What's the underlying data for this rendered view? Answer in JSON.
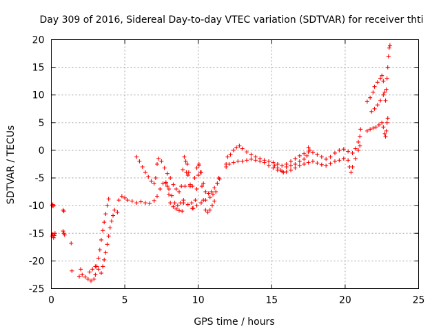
{
  "chart_data": {
    "type": "scatter",
    "title": "Day 309 of 2016, Sidereal Day-to-day VTEC variation (SDTVAR) for receiver thti",
    "xlabel": "GPS time / hours",
    "ylabel": "SDTVAR / TECUs",
    "xlim": [
      0,
      25
    ],
    "ylim": [
      -25,
      20
    ],
    "xticks": [
      0,
      5,
      10,
      15,
      20,
      25
    ],
    "yticks": [
      -25,
      -20,
      -15,
      -10,
      -5,
      0,
      5,
      10,
      15,
      20
    ],
    "grid": true,
    "marker": "+",
    "color": "#ff0000",
    "series": [
      {
        "points": [
          [
            0.05,
            -10
          ],
          [
            0.1,
            -9.8
          ],
          [
            0.12,
            -10.1
          ],
          [
            0.05,
            -15.5
          ],
          [
            0.1,
            -15.2
          ],
          [
            0.15,
            -15.8
          ],
          [
            0.2,
            -15.4
          ],
          [
            0.25,
            -15.0
          ],
          [
            0.8,
            -10.8
          ],
          [
            0.85,
            -11.0
          ],
          [
            0.8,
            -14.6
          ],
          [
            0.85,
            -15.0
          ],
          [
            0.9,
            -15.3
          ],
          [
            1.35,
            -16.8
          ],
          [
            1.4,
            -21.8
          ],
          [
            1.9,
            -22.8
          ],
          [
            2.0,
            -21.5
          ],
          [
            2.1,
            -22.5
          ],
          [
            2.3,
            -22.9
          ],
          [
            2.5,
            -23.3
          ],
          [
            2.7,
            -23.6
          ],
          [
            2.9,
            -23.3
          ],
          [
            3.0,
            -22.5
          ],
          [
            3.1,
            -21.0
          ],
          [
            3.2,
            -19.5
          ],
          [
            3.3,
            -18.0
          ],
          [
            3.4,
            -16.2
          ],
          [
            3.5,
            -14.5
          ],
          [
            3.6,
            -13.0
          ],
          [
            3.7,
            -11.5
          ],
          [
            3.8,
            -10.0
          ],
          [
            3.9,
            -8.8
          ],
          [
            2.6,
            -22.0
          ],
          [
            2.8,
            -21.5
          ],
          [
            3.0,
            -21.0
          ],
          [
            3.2,
            -21.5
          ],
          [
            3.4,
            -22.2
          ],
          [
            3.5,
            -21.0
          ],
          [
            3.6,
            -19.8
          ],
          [
            3.7,
            -18.5
          ],
          [
            3.8,
            -17.0
          ],
          [
            3.9,
            -15.5
          ],
          [
            4.0,
            -14.0
          ],
          [
            4.1,
            -12.8
          ],
          [
            4.2,
            -11.8
          ],
          [
            4.3,
            -10.8
          ],
          [
            4.5,
            -11.2
          ],
          [
            4.6,
            -9.0
          ],
          [
            4.8,
            -8.3
          ],
          [
            5.0,
            -8.6
          ],
          [
            5.2,
            -9.0
          ],
          [
            5.5,
            -9.2
          ],
          [
            5.8,
            -9.5
          ],
          [
            6.1,
            -9.3
          ],
          [
            6.4,
            -9.5
          ],
          [
            6.7,
            -9.6
          ],
          [
            7.0,
            -9.1
          ],
          [
            7.2,
            -8.3
          ],
          [
            7.4,
            -7.0
          ],
          [
            7.6,
            -6.0
          ],
          [
            7.8,
            -5.8
          ],
          [
            7.9,
            -6.5
          ],
          [
            8.0,
            -8.0
          ],
          [
            8.1,
            -9.5
          ],
          [
            8.3,
            -10.2
          ],
          [
            8.5,
            -10.6
          ],
          [
            8.7,
            -10.9
          ],
          [
            8.9,
            -11.0
          ],
          [
            9.0,
            -9.5
          ],
          [
            9.1,
            -6.5
          ],
          [
            9.2,
            -4.0
          ],
          [
            9.25,
            -2.5
          ],
          [
            9.35,
            -4.0
          ],
          [
            9.45,
            -6.5
          ],
          [
            9.55,
            -9.5
          ],
          [
            9.65,
            -10.5
          ],
          [
            9.8,
            -9.0
          ],
          [
            9.9,
            -7.0
          ],
          [
            10.0,
            -4.5
          ],
          [
            10.05,
            -2.5
          ],
          [
            10.15,
            -4.0
          ],
          [
            10.25,
            -6.5
          ],
          [
            10.35,
            -9.0
          ],
          [
            10.5,
            -10.8
          ],
          [
            10.65,
            -11.2
          ],
          [
            10.8,
            -10.8
          ],
          [
            10.95,
            -10.0
          ],
          [
            11.1,
            -9.2
          ],
          [
            11.2,
            -7.5
          ],
          [
            11.3,
            -6.0
          ],
          [
            11.4,
            -5.0
          ],
          [
            5.8,
            -1.2
          ],
          [
            6.0,
            -2.0
          ],
          [
            6.2,
            -3.0
          ],
          [
            6.4,
            -4.0
          ],
          [
            6.6,
            -4.8
          ],
          [
            6.8,
            -5.6
          ],
          [
            7.0,
            -6.0
          ],
          [
            7.1,
            -5.0
          ],
          [
            7.2,
            -2.5
          ],
          [
            7.3,
            -1.5
          ],
          [
            7.5,
            -2.0
          ],
          [
            7.7,
            -3.2
          ],
          [
            7.9,
            -4.2
          ],
          [
            8.1,
            -5.0
          ],
          [
            8.3,
            -6.2
          ],
          [
            8.5,
            -7.0
          ],
          [
            8.7,
            -7.5
          ],
          [
            8.85,
            -6.5
          ],
          [
            8.95,
            -3.5
          ],
          [
            9.05,
            -1.2
          ],
          [
            9.15,
            -2.0
          ],
          [
            9.3,
            -4.5
          ],
          [
            9.45,
            -6.2
          ],
          [
            9.6,
            -6.5
          ],
          [
            9.75,
            -5.0
          ],
          [
            9.9,
            -3.2
          ],
          [
            10.05,
            -2.8
          ],
          [
            10.2,
            -4.0
          ],
          [
            10.35,
            -6.0
          ],
          [
            10.5,
            -7.5
          ],
          [
            10.7,
            -7.8
          ],
          [
            10.9,
            -7.5
          ],
          [
            11.1,
            -6.8
          ],
          [
            11.3,
            -6.0
          ],
          [
            11.45,
            -5.2
          ],
          [
            7.8,
            -6.0
          ],
          [
            8.0,
            -7.0
          ],
          [
            8.2,
            -8.2
          ],
          [
            8.4,
            -9.5
          ],
          [
            8.6,
            -10.0
          ],
          [
            8.8,
            -9.5
          ],
          [
            9.0,
            -9.0
          ],
          [
            9.3,
            -9.8
          ],
          [
            9.6,
            -10.5
          ],
          [
            9.9,
            -10.0
          ],
          [
            10.2,
            -9.5
          ],
          [
            10.5,
            -9.0
          ],
          [
            10.8,
            -8.5
          ],
          [
            11.0,
            -8.0
          ],
          [
            11.9,
            -2.5
          ],
          [
            12.0,
            -1.2
          ],
          [
            12.2,
            -0.8
          ],
          [
            12.4,
            0.0
          ],
          [
            12.6,
            0.5
          ],
          [
            12.8,
            0.8
          ],
          [
            13.0,
            0.3
          ],
          [
            13.3,
            -0.3
          ],
          [
            13.6,
            -0.8
          ],
          [
            13.9,
            -1.2
          ],
          [
            14.2,
            -1.5
          ],
          [
            14.5,
            -1.8
          ],
          [
            14.8,
            -2.0
          ],
          [
            15.1,
            -2.2
          ],
          [
            15.4,
            -2.5
          ],
          [
            15.7,
            -2.8
          ],
          [
            16.0,
            -2.5
          ],
          [
            16.3,
            -2.0
          ],
          [
            16.6,
            -1.5
          ],
          [
            16.9,
            -1.0
          ],
          [
            17.2,
            -0.6
          ],
          [
            17.5,
            -0.3
          ],
          [
            17.8,
            -0.4
          ],
          [
            18.1,
            -0.8
          ],
          [
            18.4,
            -1.2
          ],
          [
            18.7,
            -1.6
          ],
          [
            19.0,
            -1.2
          ],
          [
            19.3,
            -0.5
          ],
          [
            19.6,
            0.0
          ],
          [
            19.9,
            0.2
          ],
          [
            20.2,
            -0.2
          ],
          [
            20.5,
            -0.5
          ],
          [
            20.7,
            0.3
          ],
          [
            20.9,
            1.5
          ],
          [
            21.0,
            2.5
          ],
          [
            21.05,
            3.8
          ],
          [
            11.9,
            -3.0
          ],
          [
            12.1,
            -2.5
          ],
          [
            12.4,
            -2.2
          ],
          [
            12.7,
            -2.0
          ],
          [
            13.0,
            -2.0
          ],
          [
            13.3,
            -1.8
          ],
          [
            13.6,
            -1.6
          ],
          [
            13.9,
            -1.8
          ],
          [
            14.2,
            -2.0
          ],
          [
            14.5,
            -2.2
          ],
          [
            14.8,
            -2.8
          ],
          [
            15.1,
            -3.2
          ],
          [
            15.4,
            -3.6
          ],
          [
            15.7,
            -3.8
          ],
          [
            16.0,
            -3.9
          ],
          [
            16.3,
            -3.6
          ],
          [
            16.6,
            -3.2
          ],
          [
            16.9,
            -2.8
          ],
          [
            17.2,
            -2.5
          ],
          [
            17.5,
            -2.2
          ],
          [
            17.8,
            -2.0
          ],
          [
            18.1,
            -2.3
          ],
          [
            18.4,
            -2.6
          ],
          [
            18.7,
            -2.8
          ],
          [
            19.0,
            -2.4
          ],
          [
            19.3,
            -2.0
          ],
          [
            19.6,
            -1.8
          ],
          [
            19.9,
            -1.5
          ],
          [
            20.2,
            -1.8
          ],
          [
            20.3,
            -3.0
          ],
          [
            20.4,
            -4.0
          ],
          [
            20.5,
            -3.0
          ],
          [
            20.7,
            -1.5
          ],
          [
            20.9,
            0.0
          ],
          [
            21.0,
            0.8
          ],
          [
            16.0,
            -3.0
          ],
          [
            16.3,
            -2.8
          ],
          [
            16.6,
            -2.5
          ],
          [
            16.9,
            -2.0
          ],
          [
            17.2,
            -1.6
          ],
          [
            17.4,
            -1.0
          ],
          [
            17.5,
            0.5
          ],
          [
            17.6,
            0.0
          ],
          [
            15.2,
            -2.8
          ],
          [
            15.4,
            -3.2
          ],
          [
            15.6,
            -3.6
          ],
          [
            15.8,
            -4.0
          ],
          [
            21.5,
            3.5
          ],
          [
            21.7,
            3.8
          ],
          [
            21.9,
            4.0
          ],
          [
            22.1,
            4.2
          ],
          [
            22.3,
            4.6
          ],
          [
            22.5,
            5.0
          ],
          [
            22.6,
            4.2
          ],
          [
            22.7,
            3.0
          ],
          [
            22.75,
            2.5
          ],
          [
            22.8,
            3.5
          ],
          [
            22.85,
            5.0
          ],
          [
            22.9,
            5.8
          ],
          [
            21.5,
            8.8
          ],
          [
            21.7,
            9.5
          ],
          [
            21.9,
            10.5
          ],
          [
            22.0,
            11.5
          ],
          [
            22.2,
            12.3
          ],
          [
            22.4,
            13.0
          ],
          [
            22.5,
            13.5
          ],
          [
            22.6,
            12.5
          ],
          [
            22.7,
            10.5
          ],
          [
            22.75,
            9.0
          ],
          [
            22.8,
            11.0
          ],
          [
            22.85,
            13.0
          ],
          [
            22.9,
            15.0
          ],
          [
            22.95,
            17.0
          ],
          [
            23.0,
            18.5
          ],
          [
            23.05,
            19.0
          ],
          [
            21.8,
            7.0
          ],
          [
            22.0,
            7.5
          ],
          [
            22.2,
            8.2
          ],
          [
            22.4,
            9.0
          ],
          [
            22.6,
            10.0
          ]
        ]
      }
    ]
  }
}
